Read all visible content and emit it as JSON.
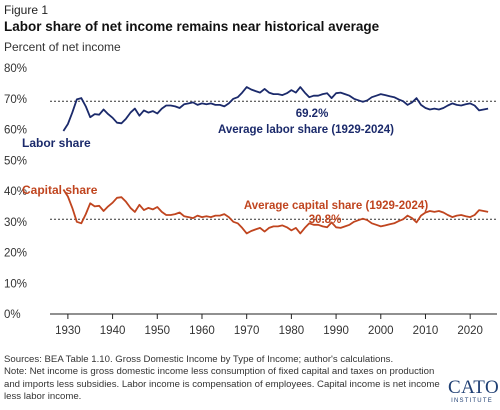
{
  "figure_label": "Figure 1",
  "title": "Labor share of net income remains near historical average",
  "subtitle": "Percent of net income",
  "footer": {
    "sources": "Sources: BEA Table 1.10. Gross Domestic Income by Type of Income; author's calculations.",
    "note": "Note: Net income is gross domestic income less consumption of fixed capital and taxes on production and imports less subsidies. Labor income is compensation of employees. Capital income is net income less labor income."
  },
  "logo": {
    "name": "CATO",
    "sub": "INSTITUTE"
  },
  "chart_data": {
    "type": "line",
    "ylim": [
      0,
      80
    ],
    "xlim": [
      1926,
      2026
    ],
    "y_ticks": [
      0,
      10,
      20,
      30,
      40,
      50,
      60,
      70,
      80
    ],
    "y_tick_labels": [
      "0%",
      "10%",
      "20%",
      "30%",
      "40%",
      "50%",
      "60%",
      "70%",
      "80%"
    ],
    "x_ticks": [
      1930,
      1940,
      1950,
      1960,
      1970,
      1980,
      1990,
      2000,
      2010,
      2020
    ],
    "x_tick_labels": [
      "1930",
      "1940",
      "1950",
      "1960",
      "1970",
      "1980",
      "1990",
      "2000",
      "2010",
      "2020"
    ],
    "grid": false,
    "colors": {
      "labor": "#1b2a6b",
      "capital": "#c0451f",
      "average_line": "#333333",
      "axis": "#222222"
    },
    "series": [
      {
        "name": "Labor share",
        "key": "labor",
        "x": [
          1929,
          1930,
          1931,
          1932,
          1933,
          1934,
          1935,
          1936,
          1937,
          1938,
          1939,
          1940,
          1941,
          1942,
          1943,
          1944,
          1945,
          1946,
          1947,
          1948,
          1949,
          1950,
          1951,
          1952,
          1953,
          1954,
          1955,
          1956,
          1957,
          1958,
          1959,
          1960,
          1961,
          1962,
          1963,
          1964,
          1965,
          1966,
          1967,
          1968,
          1969,
          1970,
          1971,
          1972,
          1973,
          1974,
          1975,
          1976,
          1977,
          1978,
          1979,
          1980,
          1981,
          1982,
          1983,
          1984,
          1985,
          1986,
          1987,
          1988,
          1989,
          1990,
          1991,
          1992,
          1993,
          1994,
          1995,
          1996,
          1997,
          1998,
          1999,
          2000,
          2001,
          2002,
          2003,
          2004,
          2005,
          2006,
          2007,
          2008,
          2009,
          2010,
          2011,
          2012,
          2013,
          2014,
          2015,
          2016,
          2017,
          2018,
          2019,
          2020,
          2021,
          2022,
          2023,
          2024
        ],
        "values": [
          59.5,
          61.8,
          65.5,
          69.8,
          70.2,
          67.5,
          64.0,
          65.0,
          64.8,
          66.5,
          65.0,
          63.8,
          62.2,
          62.0,
          63.5,
          65.5,
          66.8,
          64.5,
          66.2,
          65.5,
          66.0,
          65.2,
          66.8,
          67.8,
          67.8,
          67.5,
          67.0,
          68.2,
          68.5,
          68.8,
          68.0,
          68.5,
          68.2,
          68.5,
          68.0,
          68.0,
          67.5,
          68.5,
          70.0,
          70.5,
          72.0,
          73.8,
          73.0,
          72.5,
          72.0,
          73.2,
          72.0,
          71.5,
          71.5,
          71.2,
          71.8,
          72.8,
          72.0,
          73.8,
          72.0,
          70.5,
          71.0,
          71.0,
          71.5,
          71.8,
          70.2,
          71.8,
          72.0,
          71.5,
          71.0,
          70.0,
          69.5,
          69.0,
          69.5,
          70.5,
          71.0,
          71.5,
          71.2,
          70.8,
          70.5,
          69.8,
          69.2,
          68.0,
          68.8,
          70.2,
          68.0,
          67.0,
          66.5,
          66.8,
          66.5,
          67.0,
          67.8,
          68.5,
          68.0,
          67.8,
          68.2,
          68.5,
          67.8,
          66.2,
          66.5,
          66.8
        ]
      },
      {
        "name": "Capital share",
        "key": "capital",
        "x": [
          1929,
          1930,
          1931,
          1932,
          1933,
          1934,
          1935,
          1936,
          1937,
          1938,
          1939,
          1940,
          1941,
          1942,
          1943,
          1944,
          1945,
          1946,
          1947,
          1948,
          1949,
          1950,
          1951,
          1952,
          1953,
          1954,
          1955,
          1956,
          1957,
          1958,
          1959,
          1960,
          1961,
          1962,
          1963,
          1964,
          1965,
          1966,
          1967,
          1968,
          1969,
          1970,
          1971,
          1972,
          1973,
          1974,
          1975,
          1976,
          1977,
          1978,
          1979,
          1980,
          1981,
          1982,
          1983,
          1984,
          1985,
          1986,
          1987,
          1988,
          1989,
          1990,
          1991,
          1992,
          1993,
          1994,
          1995,
          1996,
          1997,
          1998,
          1999,
          2000,
          2001,
          2002,
          2003,
          2004,
          2005,
          2006,
          2007,
          2008,
          2009,
          2010,
          2011,
          2012,
          2013,
          2014,
          2015,
          2016,
          2017,
          2018,
          2019,
          2020,
          2021,
          2022,
          2023,
          2024
        ],
        "values": [
          40.5,
          38.2,
          34.5,
          30.0,
          29.5,
          32.5,
          36.0,
          35.0,
          35.2,
          33.5,
          35.0,
          36.2,
          37.8,
          38.0,
          36.5,
          34.5,
          33.2,
          35.5,
          33.8,
          34.5,
          34.0,
          34.8,
          33.2,
          32.2,
          32.2,
          32.5,
          33.0,
          31.8,
          31.5,
          31.2,
          32.0,
          31.5,
          31.8,
          31.5,
          32.0,
          32.0,
          32.5,
          31.5,
          30.0,
          29.5,
          28.0,
          26.2,
          27.0,
          27.5,
          28.0,
          26.8,
          28.0,
          28.5,
          28.5,
          28.8,
          28.2,
          27.2,
          28.0,
          26.2,
          28.0,
          29.5,
          29.0,
          29.0,
          28.5,
          28.2,
          29.8,
          28.2,
          28.0,
          28.5,
          29.0,
          30.0,
          30.5,
          31.0,
          30.5,
          29.5,
          29.0,
          28.5,
          28.8,
          29.2,
          29.5,
          30.2,
          30.8,
          32.0,
          31.2,
          29.8,
          32.0,
          33.0,
          33.5,
          33.2,
          33.5,
          33.0,
          32.2,
          31.5,
          32.0,
          32.2,
          31.8,
          31.5,
          32.2,
          33.8,
          33.5,
          33.2
        ]
      }
    ],
    "averages": [
      {
        "key": "labor",
        "label": "Average labor share (1929-2024)",
        "value": 69.2,
        "value_label": "69.2%"
      },
      {
        "key": "capital",
        "label": "Average capital share (1929-2024)",
        "value": 30.8,
        "value_label": "30.8%"
      }
    ]
  }
}
